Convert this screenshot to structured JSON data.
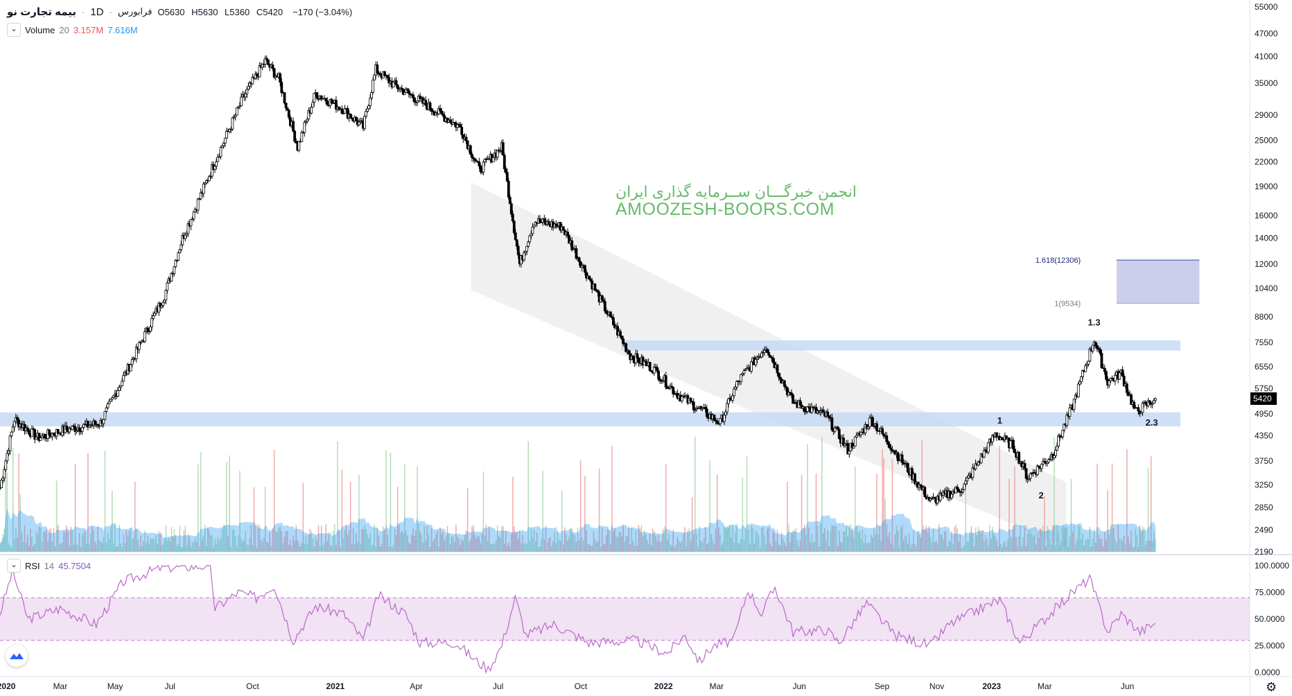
{
  "header": {
    "symbol": "بیمه تجارت نو",
    "timeframe": "1D",
    "exchange": "فرابورس",
    "open_label": "O",
    "open": "5630",
    "high_label": "H",
    "high": "5630",
    "low_label": "L",
    "low": "5360",
    "close_label": "C",
    "close": "5420",
    "change": "−170 (−3.04%)"
  },
  "volume_indicator": {
    "label": "Volume",
    "length": "20",
    "value1": "3.157M",
    "value2": "7.616M"
  },
  "rsi_indicator": {
    "label": "RSI",
    "length": "14",
    "value": "45.7504"
  },
  "watermark": {
    "line1": "انجمن خبرگـــان ســرمایه گذاری ایران",
    "line2": "AMOOZESH-BOORS.COM"
  },
  "colors": {
    "up": "#26a69a",
    "down": "#ef5350",
    "volume_ma": "#2196f3",
    "rsi_line": "#ba68c8",
    "rsi_band": "#e1bee7",
    "zone": "#c7daf5",
    "target_box": "#c5cae9",
    "channel": "#ebebeb"
  },
  "chart_data": [
    {
      "type": "candlestick",
      "scale": "log",
      "x_ticks": [
        "2020",
        "Mar",
        "May",
        "Jul",
        "Oct",
        "2021",
        "Apr",
        "Jul",
        "Oct",
        "2022",
        "Mar",
        "Jun",
        "Sep",
        "Nov",
        "2023",
        "Mar",
        "Jun"
      ],
      "y_ticks": [
        2190,
        2490,
        2850,
        3250,
        3750,
        4350,
        4950,
        5750,
        6550,
        7550,
        8800,
        10400,
        12000,
        14000,
        16000,
        19000,
        22000,
        25000,
        29000,
        35000,
        41000,
        47000,
        55000
      ],
      "ylim": [
        2190,
        55000
      ],
      "last_price": "5420",
      "close_path": [
        {
          "date": "2019-12-25",
          "close": 3200
        },
        {
          "date": "2020-01-10",
          "close": 4800
        },
        {
          "date": "2020-02-05",
          "close": 4300
        },
        {
          "date": "2020-03-05",
          "close": 4500
        },
        {
          "date": "2020-04-15",
          "close": 4700
        },
        {
          "date": "2020-05-20",
          "close": 6800
        },
        {
          "date": "2020-06-25",
          "close": 10000
        },
        {
          "date": "2020-07-15",
          "close": 14000
        },
        {
          "date": "2020-08-20",
          "close": 22000
        },
        {
          "date": "2020-09-20",
          "close": 32000
        },
        {
          "date": "2020-10-15",
          "close": 40000
        },
        {
          "date": "2020-10-30",
          "close": 36000
        },
        {
          "date": "2020-11-20",
          "close": 24000
        },
        {
          "date": "2020-12-10",
          "close": 33000
        },
        {
          "date": "2021-01-10",
          "close": 30000
        },
        {
          "date": "2021-02-01",
          "close": 27000
        },
        {
          "date": "2021-02-15",
          "close": 38000
        },
        {
          "date": "2021-03-05",
          "close": 35000
        },
        {
          "date": "2021-04-10",
          "close": 31000
        },
        {
          "date": "2021-05-20",
          "close": 27000
        },
        {
          "date": "2021-06-10",
          "close": 21000
        },
        {
          "date": "2021-07-05",
          "close": 24000
        },
        {
          "date": "2021-07-25",
          "close": 12000
        },
        {
          "date": "2021-08-10",
          "close": 15500
        },
        {
          "date": "2021-09-10",
          "close": 15000
        },
        {
          "date": "2021-10-20",
          "close": 10000
        },
        {
          "date": "2021-11-25",
          "close": 7000
        },
        {
          "date": "2021-12-20",
          "close": 6500
        },
        {
          "date": "2022-01-15",
          "close": 5600
        },
        {
          "date": "2022-02-10",
          "close": 5100
        },
        {
          "date": "2022-03-05",
          "close": 4700
        },
        {
          "date": "2022-03-25",
          "close": 6000
        },
        {
          "date": "2022-04-25",
          "close": 7400
        },
        {
          "date": "2022-05-25",
          "close": 5300
        },
        {
          "date": "2022-07-01",
          "close": 4900
        },
        {
          "date": "2022-07-25",
          "close": 4000
        },
        {
          "date": "2022-08-20",
          "close": 4800
        },
        {
          "date": "2022-09-25",
          "close": 3700
        },
        {
          "date": "2022-10-25",
          "close": 2950
        },
        {
          "date": "2022-11-30",
          "close": 3200
        },
        {
          "date": "2023-01-05",
          "close": 4400
        },
        {
          "date": "2023-01-25",
          "close": 4100
        },
        {
          "date": "2023-02-10",
          "close": 3400
        },
        {
          "date": "2023-03-10",
          "close": 3900
        },
        {
          "date": "2023-04-01",
          "close": 5200
        },
        {
          "date": "2023-04-25",
          "close": 7700
        },
        {
          "date": "2023-05-10",
          "close": 6000
        },
        {
          "date": "2023-05-25",
          "close": 6300
        },
        {
          "date": "2023-06-10",
          "close": 5000
        },
        {
          "date": "2023-07-02",
          "close": 5420
        }
      ],
      "annotations": [
        {
          "text": "1",
          "date": "2023-01-10",
          "price": 4750
        },
        {
          "text": "2",
          "date": "2023-02-25",
          "price": 3050
        },
        {
          "text": "1.3",
          "date": "2023-04-25",
          "price": 8500
        },
        {
          "text": "2.3",
          "date": "2023-06-28",
          "price": 4700
        },
        {
          "text": "1.618(12306)",
          "date": "2023-04-10",
          "price": 12306
        },
        {
          "text": "1(9534)",
          "date": "2023-04-10",
          "price": 9534
        }
      ],
      "zones": [
        {
          "from": "2019-12-25",
          "to": "2023-07-30",
          "low": 4600,
          "high": 5000
        },
        {
          "from": "2021-11-15",
          "to": "2023-07-30",
          "low": 7200,
          "high": 7650
        }
      ],
      "target_box": {
        "from": "2023-05-20",
        "to": "2023-08-20",
        "low": 9534,
        "high": 12306
      },
      "channel": {
        "start": "2021-06-01",
        "end": "2023-03-25",
        "upper_start": 19500,
        "upper_end": 3300,
        "lower_start": 10300,
        "lower_end": 2250
      }
    },
    {
      "type": "area",
      "name": "Volume",
      "series": "volume bars with 20-day average",
      "ylim": [
        0,
        1
      ]
    },
    {
      "type": "line",
      "name": "RSI",
      "y_ticks": [
        "100.0000",
        "75.0000",
        "50.0000",
        "25.0000",
        "0.0000"
      ],
      "ylim": [
        0,
        100
      ],
      "bands": [
        30,
        70
      ],
      "values": [
        {
          "date": "2019-12-25",
          "rsi": 55
        },
        {
          "date": "2020-01-08",
          "rsi": 95
        },
        {
          "date": "2020-01-25",
          "rsi": 50
        },
        {
          "date": "2020-03-01",
          "rsi": 60
        },
        {
          "date": "2020-04-10",
          "rsi": 45
        },
        {
          "date": "2020-05-10",
          "rsi": 85
        },
        {
          "date": "2020-06-20",
          "rsi": 98
        },
        {
          "date": "2020-08-15",
          "rsi": 100
        },
        {
          "date": "2020-08-20",
          "rsi": 60
        },
        {
          "date": "2020-09-15",
          "rsi": 75
        },
        {
          "date": "2020-10-05",
          "rsi": 70
        },
        {
          "date": "2020-10-25",
          "rsi": 82
        },
        {
          "date": "2020-11-15",
          "rsi": 30
        },
        {
          "date": "2020-12-10",
          "rsi": 62
        },
        {
          "date": "2021-01-10",
          "rsi": 55
        },
        {
          "date": "2021-02-01",
          "rsi": 30
        },
        {
          "date": "2021-02-18",
          "rsi": 72
        },
        {
          "date": "2021-03-20",
          "rsi": 55
        },
        {
          "date": "2021-04-05",
          "rsi": 28
        },
        {
          "date": "2021-05-15",
          "rsi": 28
        },
        {
          "date": "2021-06-05",
          "rsi": 12
        },
        {
          "date": "2021-06-20",
          "rsi": 3
        },
        {
          "date": "2021-07-05",
          "rsi": 25
        },
        {
          "date": "2021-07-20",
          "rsi": 70
        },
        {
          "date": "2021-08-01",
          "rsi": 35
        },
        {
          "date": "2021-09-01",
          "rsi": 45
        },
        {
          "date": "2021-10-10",
          "rsi": 28
        },
        {
          "date": "2021-12-01",
          "rsi": 30
        },
        {
          "date": "2022-01-05",
          "rsi": 18
        },
        {
          "date": "2022-01-25",
          "rsi": 35
        },
        {
          "date": "2022-02-10",
          "rsi": 10
        },
        {
          "date": "2022-02-25",
          "rsi": 25
        },
        {
          "date": "2022-03-20",
          "rsi": 30
        },
        {
          "date": "2022-04-05",
          "rsi": 78
        },
        {
          "date": "2022-04-20",
          "rsi": 55
        },
        {
          "date": "2022-05-05",
          "rsi": 80
        },
        {
          "date": "2022-05-25",
          "rsi": 38
        },
        {
          "date": "2022-07-01",
          "rsi": 40
        },
        {
          "date": "2022-07-15",
          "rsi": 28
        },
        {
          "date": "2022-08-15",
          "rsi": 65
        },
        {
          "date": "2022-09-15",
          "rsi": 35
        },
        {
          "date": "2022-10-25",
          "rsi": 25
        },
        {
          "date": "2022-11-15",
          "rsi": 45
        },
        {
          "date": "2022-12-15",
          "rsi": 58
        },
        {
          "date": "2023-01-10",
          "rsi": 68
        },
        {
          "date": "2023-02-01",
          "rsi": 28
        },
        {
          "date": "2023-03-01",
          "rsi": 50
        },
        {
          "date": "2023-04-01",
          "rsi": 75
        },
        {
          "date": "2023-04-20",
          "rsi": 88
        },
        {
          "date": "2023-05-10",
          "rsi": 38
        },
        {
          "date": "2023-05-25",
          "rsi": 55
        },
        {
          "date": "2023-06-15",
          "rsi": 38
        },
        {
          "date": "2023-07-02",
          "rsi": 46
        }
      ]
    }
  ]
}
